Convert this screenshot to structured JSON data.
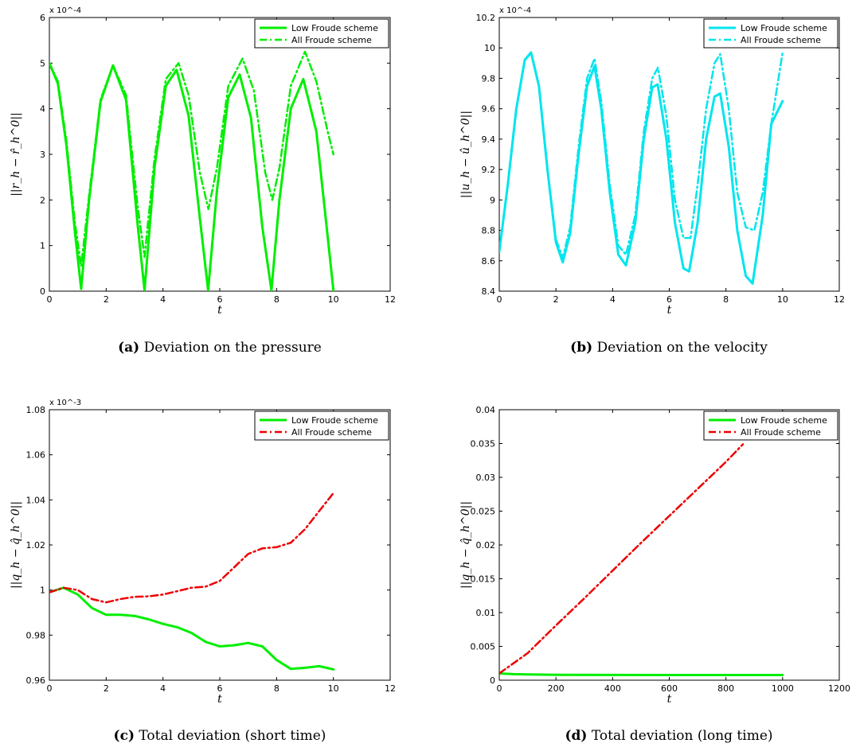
{
  "chart_data": [
    {
      "type": "line",
      "caption_tag": "(a)",
      "caption": "Deviation on the pressure",
      "xlabel": "t",
      "ylabel": "||r_h − r̂_h^0||",
      "xlim": [
        0,
        12
      ],
      "ylim": [
        0,
        6
      ],
      "xticks": [
        "0",
        "2",
        "4",
        "6",
        "8",
        "10",
        "12"
      ],
      "yticks": [
        "0",
        "1",
        "2",
        "3",
        "4",
        "5",
        "6"
      ],
      "multiplier": "x 10^-4",
      "legend": "top-right",
      "grid": false,
      "series": [
        {
          "name": "Low Froude scheme",
          "color": "#00ee00",
          "style": "solid",
          "x": [
            0,
            0.3,
            0.6,
            0.9,
            1.12,
            1.4,
            1.8,
            2.24,
            2.7,
            3.1,
            3.35,
            3.7,
            4.1,
            4.48,
            4.9,
            5.3,
            5.59,
            5.9,
            6.3,
            6.7,
            7.1,
            7.5,
            7.82,
            8.1,
            8.5,
            8.94,
            9.4,
            9.8,
            10
          ],
          "y": [
            5.0,
            4.55,
            3.2,
            1.3,
            0.05,
            2.0,
            4.15,
            4.95,
            4.2,
            1.5,
            0.02,
            2.7,
            4.5,
            4.85,
            3.85,
            1.6,
            0.02,
            2.2,
            4.25,
            4.75,
            3.8,
            1.4,
            0.02,
            2.0,
            4.0,
            4.65,
            3.5,
            1.2,
            0.02
          ]
        },
        {
          "name": "All Froude scheme",
          "color": "#00ee00",
          "style": "dashdot",
          "x": [
            0,
            0.3,
            0.6,
            0.9,
            1.12,
            1.4,
            1.8,
            2.24,
            2.7,
            3.1,
            3.35,
            3.7,
            4.1,
            4.55,
            4.9,
            5.3,
            5.6,
            5.9,
            6.3,
            6.8,
            7.2,
            7.6,
            7.85,
            8.1,
            8.5,
            9.0,
            9.4,
            9.8,
            10
          ],
          "y": [
            5.0,
            4.6,
            3.3,
            1.5,
            0.55,
            2.1,
            4.2,
            4.95,
            4.3,
            1.9,
            0.75,
            2.9,
            4.65,
            5.0,
            4.3,
            2.6,
            1.8,
            2.7,
            4.5,
            5.1,
            4.4,
            2.6,
            2.0,
            2.7,
            4.5,
            5.25,
            4.6,
            3.5,
            3.0
          ]
        }
      ]
    },
    {
      "type": "line",
      "caption_tag": "(b)",
      "caption": "Deviation on the velocity",
      "xlabel": "t",
      "ylabel": "||u_h − û_h^0||",
      "xlim": [
        0,
        12
      ],
      "ylim": [
        8.4,
        10.2
      ],
      "xticks": [
        "0",
        "2",
        "4",
        "6",
        "8",
        "10",
        "12"
      ],
      "yticks": [
        "8.4",
        "8.6",
        "8.8",
        "9",
        "9.2",
        "9.4",
        "9.6",
        "9.8",
        "10",
        "10.2"
      ],
      "multiplier": "x 10^-4",
      "legend": "top-right",
      "grid": false,
      "series": [
        {
          "name": "Low Froude scheme",
          "color": "#00e5ee",
          "style": "solid",
          "x": [
            0,
            0.3,
            0.6,
            0.9,
            1.12,
            1.4,
            1.7,
            2.0,
            2.24,
            2.5,
            2.8,
            3.1,
            3.36,
            3.6,
            3.9,
            4.2,
            4.47,
            4.8,
            5.1,
            5.4,
            5.59,
            5.9,
            6.2,
            6.5,
            6.7,
            7.0,
            7.3,
            7.6,
            7.8,
            8.1,
            8.4,
            8.7,
            8.94,
            9.3,
            9.6,
            10
          ],
          "y": [
            8.66,
            9.1,
            9.6,
            9.92,
            9.97,
            9.75,
            9.2,
            8.72,
            8.59,
            8.78,
            9.3,
            9.75,
            9.88,
            9.6,
            9.05,
            8.64,
            8.57,
            8.85,
            9.4,
            9.74,
            9.76,
            9.4,
            8.85,
            8.55,
            8.53,
            8.85,
            9.4,
            9.68,
            9.7,
            9.35,
            8.8,
            8.5,
            8.45,
            8.9,
            9.5,
            9.65
          ]
        },
        {
          "name": "All Froude scheme",
          "color": "#00e5ee",
          "style": "dashdot",
          "x": [
            0,
            0.3,
            0.6,
            0.9,
            1.12,
            1.4,
            1.7,
            2.0,
            2.24,
            2.5,
            2.8,
            3.1,
            3.36,
            3.6,
            3.9,
            4.2,
            4.47,
            4.8,
            5.1,
            5.4,
            5.6,
            5.9,
            6.2,
            6.5,
            6.75,
            7.0,
            7.3,
            7.6,
            7.8,
            8.1,
            8.4,
            8.7,
            9.0,
            9.3,
            9.6,
            10
          ],
          "y": [
            8.66,
            9.1,
            9.6,
            9.92,
            9.97,
            9.75,
            9.2,
            8.74,
            8.62,
            8.82,
            9.35,
            9.8,
            9.93,
            9.65,
            9.1,
            8.7,
            8.64,
            8.9,
            9.45,
            9.8,
            9.87,
            9.55,
            9.0,
            8.75,
            8.75,
            9.1,
            9.6,
            9.9,
            9.96,
            9.6,
            9.05,
            8.82,
            8.8,
            9.05,
            9.5,
            9.97
          ]
        }
      ]
    },
    {
      "type": "line",
      "caption_tag": "(c)",
      "caption": "Total deviation (short time)",
      "xlabel": "t",
      "ylabel": "||q_h − q̂_h^0||",
      "xlim": [
        0,
        12
      ],
      "ylim": [
        0.96,
        1.08
      ],
      "xticks": [
        "0",
        "2",
        "4",
        "6",
        "8",
        "10",
        "12"
      ],
      "yticks": [
        "0.96",
        "0.98",
        "1",
        "1.02",
        "1.04",
        "1.06",
        "1.08"
      ],
      "multiplier": "x 10^-3",
      "legend": "top-right",
      "grid": false,
      "series": [
        {
          "name": "Low Froude scheme",
          "color": "#00ee00",
          "style": "solid",
          "x": [
            0,
            0.5,
            1.0,
            1.5,
            2.0,
            2.5,
            3.0,
            3.5,
            4.0,
            4.5,
            5.0,
            5.5,
            6.0,
            6.5,
            7.0,
            7.5,
            8.0,
            8.5,
            9.0,
            9.5,
            10
          ],
          "y": [
            0.999,
            1.001,
            0.998,
            0.992,
            0.989,
            0.989,
            0.9885,
            0.987,
            0.985,
            0.9835,
            0.981,
            0.977,
            0.975,
            0.9755,
            0.9765,
            0.975,
            0.969,
            0.965,
            0.9655,
            0.9662,
            0.9648
          ]
        },
        {
          "name": "All Froude scheme",
          "color": "#ee0000",
          "style": "dashdot",
          "x": [
            0,
            0.5,
            1.0,
            1.5,
            2.0,
            2.5,
            3.0,
            3.5,
            4.0,
            4.5,
            5.0,
            5.5,
            6.0,
            6.5,
            7.0,
            7.5,
            8.0,
            8.5,
            9.0,
            9.5,
            10
          ],
          "y": [
            0.999,
            1.001,
            1.0,
            0.996,
            0.9945,
            0.996,
            0.997,
            0.9972,
            0.998,
            0.9995,
            1.001,
            1.0015,
            1.004,
            1.01,
            1.016,
            1.0185,
            1.019,
            1.021,
            1.027,
            1.035,
            1.043
          ]
        }
      ]
    },
    {
      "type": "line",
      "caption_tag": "(d)",
      "caption": "Total deviation (long time)",
      "xlabel": "t",
      "ylabel": "||q_h − q̂_h^0||",
      "xlim": [
        0,
        1200
      ],
      "ylim": [
        0,
        0.04
      ],
      "xticks": [
        "0",
        "200",
        "400",
        "600",
        "800",
        "1000",
        "1200"
      ],
      "yticks": [
        "0",
        "0.005",
        "0.01",
        "0.015",
        "0.02",
        "0.025",
        "0.03",
        "0.035",
        "0.04"
      ],
      "multiplier": "",
      "legend": "top-right",
      "grid": false,
      "series": [
        {
          "name": "Low Froude scheme",
          "color": "#00ee00",
          "style": "solid",
          "x": [
            0,
            50,
            100,
            200,
            400,
            600,
            800,
            1000
          ],
          "y": [
            0.001,
            0.0009,
            0.00085,
            0.0008,
            0.00078,
            0.00077,
            0.00077,
            0.00077
          ]
        },
        {
          "name": "All Froude scheme",
          "color": "#ee0000",
          "style": "dashdot",
          "x": [
            0,
            100,
            200,
            300,
            400,
            500,
            600,
            700,
            800,
            860
          ],
          "y": [
            0.001,
            0.004,
            0.0081,
            0.0121,
            0.0162,
            0.0203,
            0.0243,
            0.0283,
            0.0323,
            0.0349
          ]
        }
      ]
    }
  ]
}
